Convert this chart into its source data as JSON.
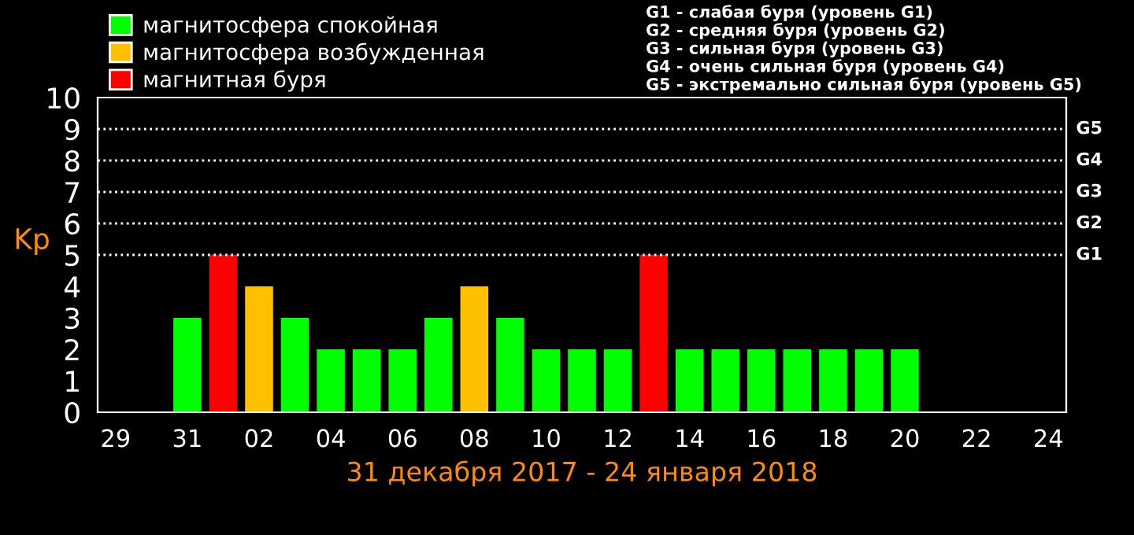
{
  "chart_data": {
    "type": "bar",
    "xlabel": "31 декабря 2017 - 24 января 2018",
    "ylabel": "Kp",
    "categories": [
      "29",
      null,
      "31",
      null,
      "02",
      null,
      "04",
      null,
      "06",
      null,
      "08",
      null,
      "10",
      null,
      "12",
      null,
      "14",
      null,
      "16",
      null,
      "18",
      null,
      "20",
      null,
      "22",
      null,
      "24"
    ],
    "series": [
      {
        "name": "магнитосфера спокойная",
        "color": "#00ff00",
        "values": [
          null,
          null,
          3,
          null,
          null,
          3,
          2,
          2,
          2,
          3,
          null,
          3,
          2,
          2,
          2,
          null,
          2,
          2,
          2,
          2,
          2,
          2,
          2,
          null,
          null,
          null,
          null
        ]
      },
      {
        "name": "магнитосфера возбужденная",
        "color": "#ffc000",
        "values": [
          null,
          null,
          null,
          null,
          4,
          null,
          null,
          null,
          null,
          null,
          4,
          null,
          null,
          null,
          null,
          null,
          null,
          null,
          null,
          null,
          null,
          null,
          null,
          null,
          null,
          null,
          null
        ]
      },
      {
        "name": "магнитная буря",
        "color": "#ff0000",
        "values": [
          null,
          null,
          null,
          5,
          null,
          null,
          null,
          null,
          null,
          null,
          null,
          null,
          null,
          null,
          null,
          5,
          null,
          null,
          null,
          null,
          null,
          null,
          null,
          null,
          null,
          null,
          null
        ]
      }
    ],
    "ylim": [
      0,
      10
    ],
    "yticks": [
      0,
      1,
      2,
      3,
      4,
      5,
      6,
      7,
      8,
      9,
      10
    ],
    "grid": false,
    "legend": "top left",
    "ref_lines": [
      {
        "axis": "y",
        "value": 5,
        "label": "G1",
        "color": "#ffffff",
        "line_style": "dotted"
      },
      {
        "axis": "y",
        "value": 6,
        "label": "G2",
        "color": "#ffffff",
        "line_style": "dotted"
      },
      {
        "axis": "y",
        "value": 7,
        "label": "G3",
        "color": "#ffffff",
        "line_style": "dotted"
      },
      {
        "axis": "y",
        "value": 8,
        "label": "G4",
        "color": "#ffffff",
        "line_style": "dotted"
      },
      {
        "axis": "y",
        "value": 9,
        "label": "G5",
        "color": "#ffffff",
        "line_style": "dotted"
      }
    ],
    "annotations": [
      "G1 - слабая буря (уровень G1)",
      "G2 - средняя буря (уровень G2)",
      "G3 - сильная буря (уровень G3)",
      "G4 - очень сильная буря (уровень G4)",
      "G5 - экстремально сильная буря (уровень G5)"
    ]
  }
}
